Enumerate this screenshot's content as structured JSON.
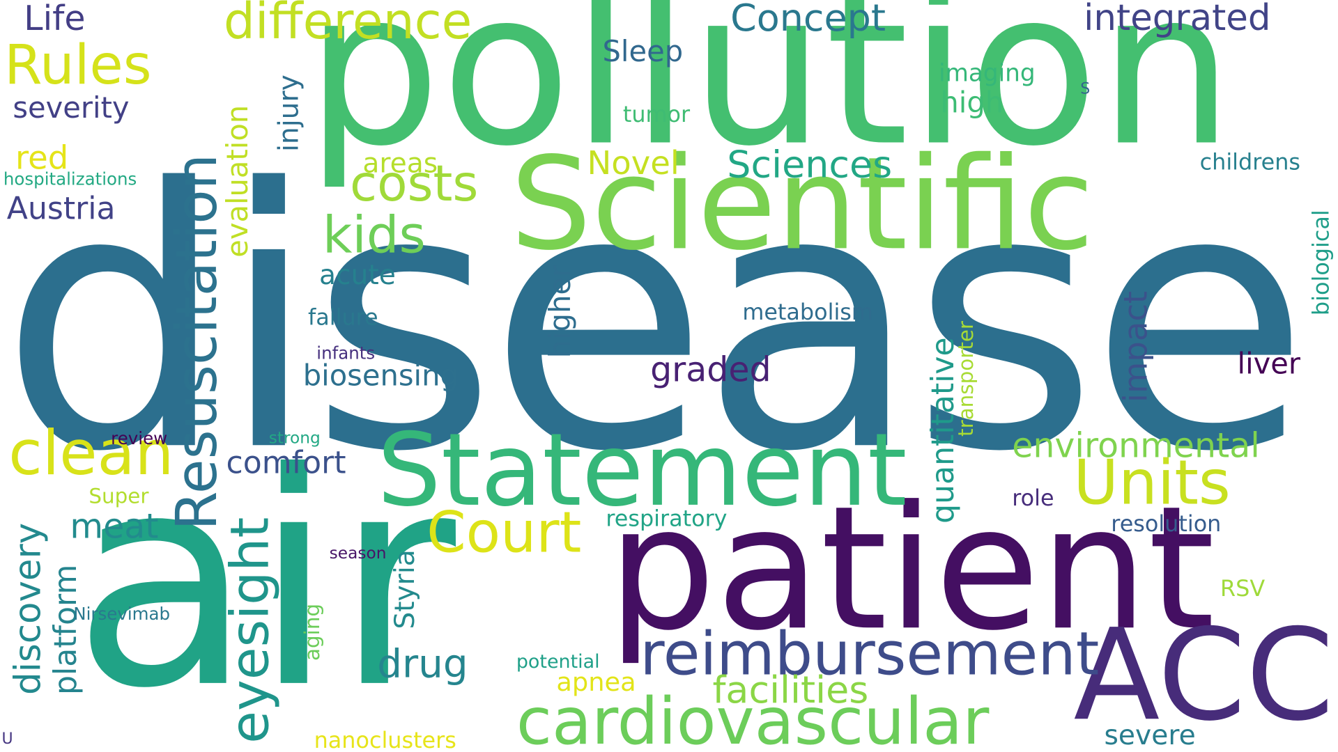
{
  "words": {
    "disease": {
      "text": "disease",
      "color": "#2c6f8e"
    },
    "air": {
      "text": "air",
      "color": "#20a386"
    },
    "pollution": {
      "text": "pollution",
      "color": "#44bf70"
    },
    "patient": {
      "text": "patient",
      "color": "#440f62"
    },
    "scientific": {
      "text": "Scientific",
      "color": "#7ad151"
    },
    "statement": {
      "text": "Statement",
      "color": "#35b779"
    },
    "acc": {
      "text": "ACC",
      "color": "#472c7a"
    },
    "cardiovascular": {
      "text": "cardiovascular",
      "color": "#6ccd5a"
    },
    "reimbursement": {
      "text": "reimbursement",
      "color": "#3e4c8a"
    },
    "resuscitation": {
      "text": "Resuscitation",
      "color": "#2c728e"
    },
    "units": {
      "text": "Units",
      "color": "#c8e020"
    },
    "clean": {
      "text": "clean",
      "color": "#d8e219"
    },
    "eyesight": {
      "text": "eyesight",
      "color": "#1f958b"
    },
    "court": {
      "text": "Court",
      "color": "#dde318"
    },
    "difference": {
      "text": "difference",
      "color": "#c2df23"
    },
    "rules": {
      "text": "Rules",
      "color": "#d5e21a"
    },
    "costs": {
      "text": "costs",
      "color": "#a0da39"
    },
    "kids": {
      "text": "kids",
      "color": "#6ece58"
    },
    "concept": {
      "text": "Concept",
      "color": "#2a788e"
    },
    "integrated": {
      "text": "integrated",
      "color": "#414487"
    },
    "sciences": {
      "text": "Sciences",
      "color": "#22a785"
    },
    "novel": {
      "text": "Novel",
      "color": "#c5e021"
    },
    "environmental": {
      "text": "environmental",
      "color": "#7fd34e"
    },
    "facilities": {
      "text": "facilities",
      "color": "#8bd646"
    },
    "graded": {
      "text": "graded",
      "color": "#482173"
    },
    "drug": {
      "text": "drug",
      "color": "#25858e"
    },
    "meat": {
      "text": "meat",
      "color": "#228b8d"
    },
    "comfort": {
      "text": "comfort",
      "color": "#3b518b"
    },
    "discovery": {
      "text": "discovery",
      "color": "#23898e"
    },
    "platform": {
      "text": "platform",
      "color": "#25848e"
    },
    "quantitative": {
      "text": "quantitative",
      "color": "#1f9a8a"
    },
    "impact": {
      "text": "impact",
      "color": "#3b528b"
    },
    "liver": {
      "text": "liver",
      "color": "#440154"
    },
    "life": {
      "text": "Life",
      "color": "#433e85"
    },
    "severity": {
      "text": "severity",
      "color": "#424086"
    },
    "red": {
      "text": "red",
      "color": "#e5e419"
    },
    "austria": {
      "text": "Austria",
      "color": "#414287"
    },
    "evaluation": {
      "text": "evaluation",
      "color": "#c0df25"
    },
    "injury": {
      "text": "injury",
      "color": "#2e6e8e"
    },
    "sleep": {
      "text": "Sleep",
      "color": "#31688e"
    },
    "areas": {
      "text": "areas",
      "color": "#b5de2b"
    },
    "acute": {
      "text": "acute",
      "color": "#26818e"
    },
    "failure": {
      "text": "failure",
      "color": "#2a788e"
    },
    "infants": {
      "text": "infants",
      "color": "#46307e"
    },
    "biosensing": {
      "text": "biosensing",
      "color": "#2d708e"
    },
    "higher": {
      "text": "higher",
      "color": "#2e6d8e"
    },
    "metabolism": {
      "text": "metabolism",
      "color": "#2f6c8e"
    },
    "transporter": {
      "text": "transporter",
      "color": "#a8db34"
    },
    "imaging": {
      "text": "imaging",
      "color": "#35b779"
    },
    "high": {
      "text": "high",
      "color": "#3dbc74"
    },
    "tumor": {
      "text": "tumor",
      "color": "#3fbc73"
    },
    "s": {
      "text": "S",
      "color": "#33638d"
    },
    "childrens": {
      "text": "childrens",
      "color": "#27808e"
    },
    "biological": {
      "text": "biological",
      "color": "#1f9e89"
    },
    "hospitalizations": {
      "text": "hospitalizations",
      "color": "#23a983"
    },
    "review": {
      "text": "review",
      "color": "#440154"
    },
    "strong": {
      "text": "strong",
      "color": "#22a884"
    },
    "super": {
      "text": "Super",
      "color": "#b2dd2d"
    },
    "season": {
      "text": "season",
      "color": "#481467"
    },
    "nirsevimab": {
      "text": "Nirsevimab",
      "color": "#2a788e"
    },
    "aging": {
      "text": "aging",
      "color": "#6ccd5a"
    },
    "styria": {
      "text": "Styria",
      "color": "#238a8d"
    },
    "respiratory": {
      "text": "respiratory",
      "color": "#20a486"
    },
    "potential": {
      "text": "potential",
      "color": "#1fa088"
    },
    "apnea": {
      "text": "apnea",
      "color": "#e2e418"
    },
    "nanoclusters": {
      "text": "nanoclusters",
      "color": "#e7e419"
    },
    "role": {
      "text": "role",
      "color": "#472d7b"
    },
    "resolution": {
      "text": "resolution",
      "color": "#365c8d"
    },
    "rsv": {
      "text": "RSV",
      "color": "#9fda3a"
    },
    "severe": {
      "text": "severe",
      "color": "#287d8e"
    },
    "u": {
      "text": "U",
      "color": "#453581"
    }
  }
}
